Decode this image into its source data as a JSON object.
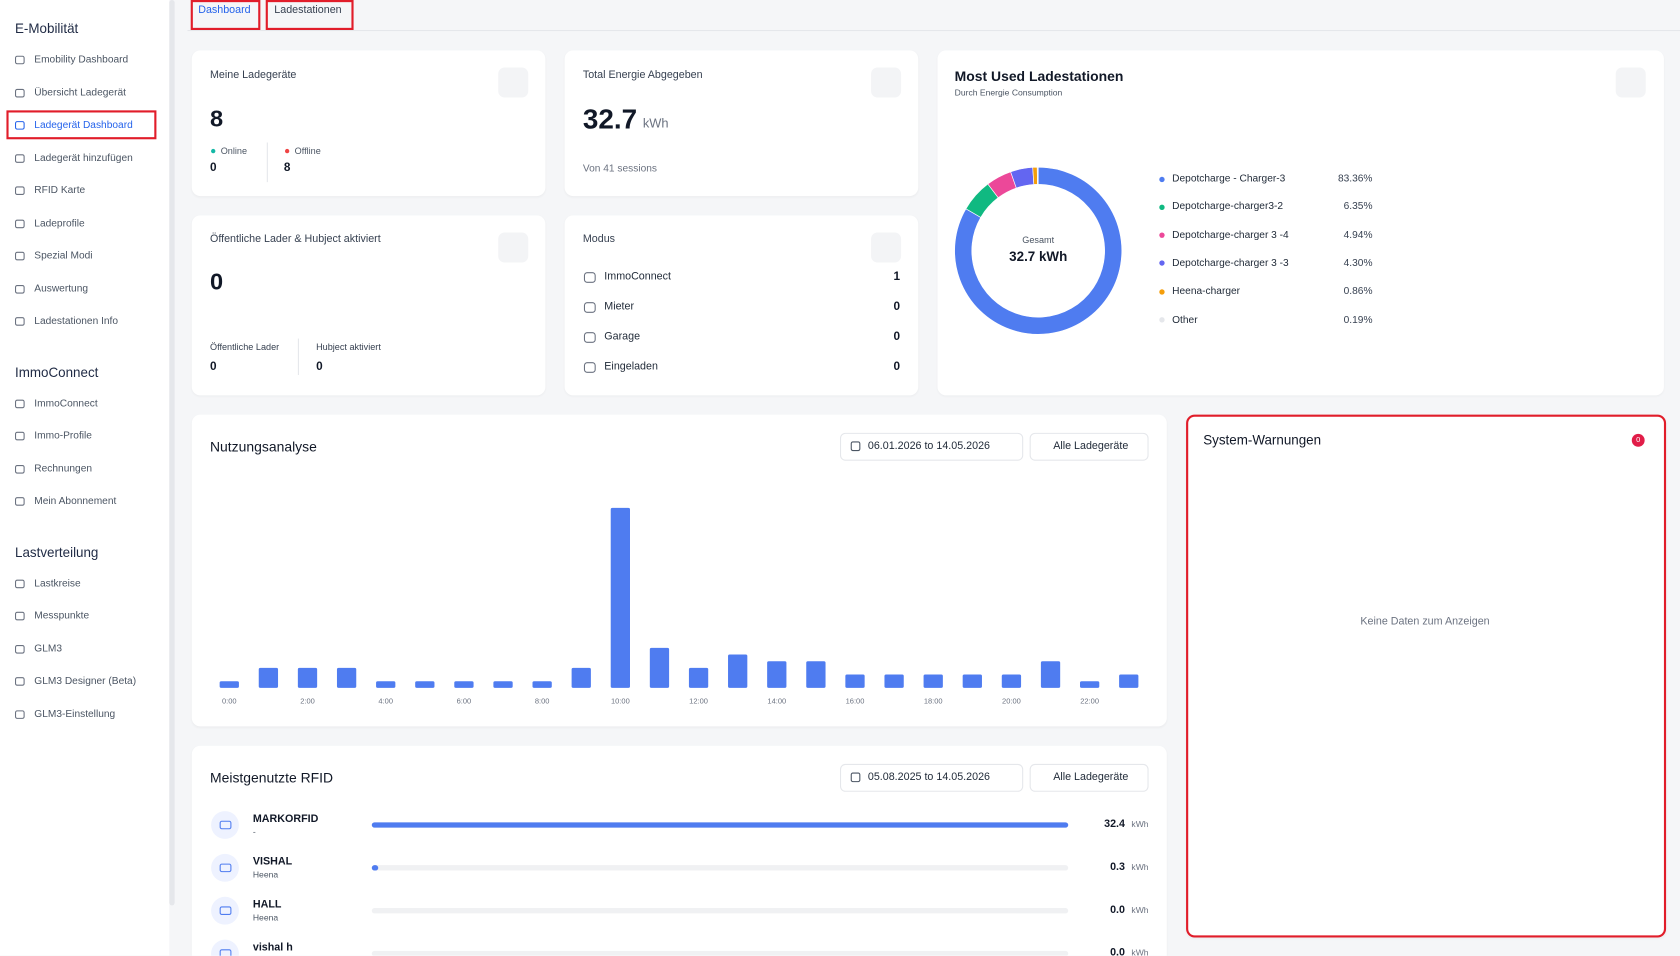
{
  "tabs": [
    "Dashboard",
    "Ladestationen"
  ],
  "sidebar": [
    {
      "title": "E-Mobilität",
      "items": [
        "Emobility Dashboard",
        "Übersicht Ladegerät",
        "Ladegerät Dashboard",
        "Ladegerät hinzufügen",
        "RFID Karte",
        "Ladeprofile",
        "Spezial Modi",
        "Auswertung",
        "Ladestationen Info"
      ]
    },
    {
      "title": "ImmoConnect",
      "items": [
        "ImmoConnect",
        "Immo-Profile",
        "Rechnungen",
        "Mein Abonnement"
      ]
    },
    {
      "title": "Lastverteilung",
      "items": [
        "Lastkreise",
        "Messpunkte",
        "GLM3",
        "GLM3 Designer (Beta)",
        "GLM3-Einstellung"
      ]
    }
  ],
  "chargers": {
    "title": "Meine Ladegeräte",
    "value": 8,
    "stats": [
      {
        "label": "Online",
        "value": 0
      },
      {
        "label": "Offline",
        "value": 8
      }
    ]
  },
  "energy": {
    "title": "Total Energie Abgegeben",
    "value": 32.7,
    "unit": "kWh",
    "note": "Von 41 sessions"
  },
  "public": {
    "title": "Öffentliche Lader & Hubject aktiviert",
    "value": 0,
    "stats": [
      {
        "label": "Öffentliche Lader",
        "value": 0
      },
      {
        "label": "Hubject aktiviert",
        "value": 0
      }
    ]
  },
  "modus": {
    "title": "Modus",
    "rows": [
      {
        "label": "ImmoConnect",
        "value": 1
      },
      {
        "label": "Mieter",
        "value": 0
      },
      {
        "label": "Garage",
        "value": 0
      },
      {
        "label": "Eingeladen",
        "value": 0
      }
    ]
  },
  "most_used": {
    "title": "Most Used Ladestationen",
    "subtitle": "Durch Energie Consumption",
    "center_label": "Gesamt",
    "center_value": "32.7 kWh",
    "chart": {
      "type": "pie",
      "categories": [
        "Depotcharge - Charger-3",
        "Depotcharge-charger3-2",
        "Depotcharge-charger 3 -4",
        "Depotcharge-charger 3 -3",
        "Heena-charger",
        "Other"
      ],
      "values": [
        83.36,
        6.35,
        4.94,
        4.3,
        0.86,
        0.19
      ],
      "value_labels": [
        "83.36%",
        "6.35%",
        "4.94%",
        "4.30%",
        "0.86%",
        "0.19%"
      ],
      "colors": [
        "#4f7cf0",
        "#10b981",
        "#ec4899",
        "#6366f1",
        "#f59e0b",
        "#e5e7eb"
      ]
    }
  },
  "usage": {
    "title": "Nutzungsanalyse",
    "date_range": "06.01.2026 to 14.05.2026",
    "filter": "Alle Ladegeräte",
    "chart": {
      "type": "bar",
      "color": "#4f7cf0",
      "categories": [
        "0:00",
        null,
        "2:00",
        null,
        "4:00",
        null,
        "6:00",
        null,
        "8:00",
        null,
        "10:00",
        null,
        "12:00",
        null,
        "14:00",
        null,
        "16:00",
        null,
        "18:00",
        null,
        "20:00",
        null,
        "22:00",
        null
      ],
      "values": [
        1,
        3,
        3,
        3,
        1,
        1,
        1,
        1,
        1,
        3,
        27,
        6,
        3,
        5,
        4,
        4,
        2,
        2,
        2,
        2,
        2,
        4,
        1,
        2
      ]
    }
  },
  "warnings": {
    "title": "System-Warnungen",
    "count": 0,
    "empty": "Keine Daten zum Anzeigen"
  },
  "rfid": {
    "title": "Meistgenutzte RFID",
    "date_range": "05.08.2025 to 14.05.2026",
    "filter": "Alle Ladegeräte",
    "unit": "kWh",
    "color": "#4f7cf0",
    "rows": [
      {
        "name": "MARKORFID",
        "sub": "-",
        "value": 32.4
      },
      {
        "name": "VISHAL",
        "sub": "Heena",
        "value": 0.3
      },
      {
        "name": "HALL",
        "sub": "Heena",
        "value": 0,
        "value_label": "0.0"
      },
      {
        "name": "vishal h",
        "value": 0,
        "value_label": "0.0"
      }
    ]
  }
}
